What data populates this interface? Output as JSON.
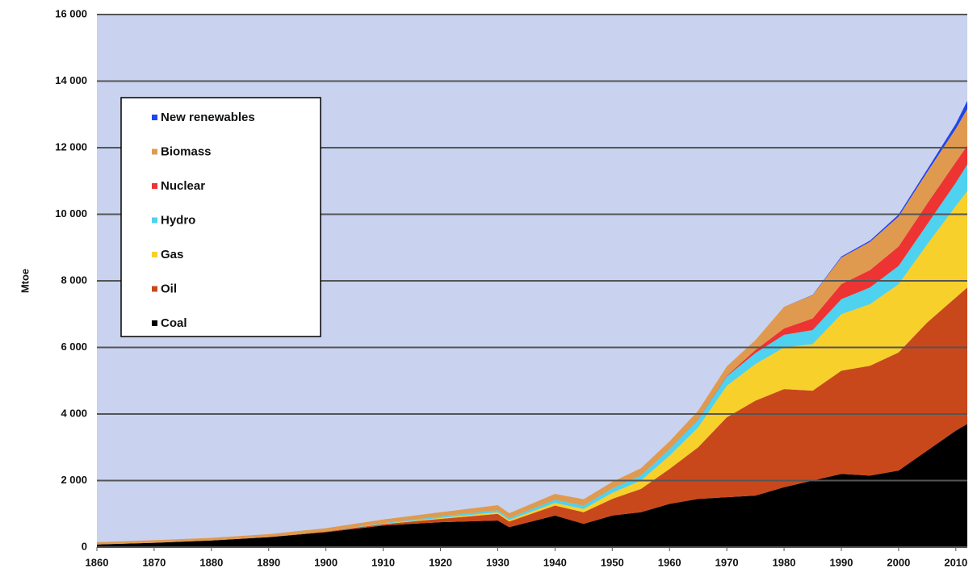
{
  "chart_data": {
    "type": "stacked-area",
    "y_label": "Mtoe",
    "x": [
      1860,
      1870,
      1880,
      1890,
      1900,
      1910,
      1920,
      1930,
      1932,
      1940,
      1945,
      1950,
      1955,
      1960,
      1965,
      1970,
      1975,
      1980,
      1985,
      1990,
      1995,
      2000,
      2005,
      2010,
      2012
    ],
    "series": [
      {
        "name": "Coal",
        "color": "#000000",
        "values": [
          80,
          130,
          200,
          300,
          450,
          650,
          750,
          800,
          600,
          950,
          700,
          950,
          1050,
          1300,
          1450,
          1500,
          1550,
          1800,
          2000,
          2200,
          2150,
          2300,
          2900,
          3500,
          3700
        ]
      },
      {
        "name": "Oil",
        "color": "#c9481b",
        "values": [
          0,
          0,
          0,
          0,
          20,
          40,
          100,
          200,
          170,
          300,
          350,
          500,
          700,
          1050,
          1550,
          2400,
          2850,
          2950,
          2700,
          3100,
          3300,
          3550,
          3850,
          4000,
          4100
        ]
      },
      {
        "name": "Gas",
        "color": "#f7d02c",
        "values": [
          0,
          0,
          0,
          0,
          0,
          10,
          30,
          50,
          45,
          80,
          100,
          180,
          250,
          400,
          600,
          950,
          1100,
          1250,
          1400,
          1700,
          1850,
          2050,
          2350,
          2750,
          2900
        ]
      },
      {
        "name": "Hydro",
        "color": "#4fd1f0",
        "values": [
          0,
          0,
          0,
          0,
          0,
          20,
          40,
          60,
          55,
          90,
          100,
          130,
          150,
          190,
          230,
          280,
          330,
          380,
          420,
          450,
          500,
          550,
          600,
          700,
          800
        ]
      },
      {
        "name": "Nuclear",
        "color": "#ee3333",
        "values": [
          0,
          0,
          0,
          0,
          0,
          0,
          0,
          0,
          0,
          0,
          0,
          0,
          0,
          0,
          10,
          20,
          90,
          190,
          350,
          450,
          520,
          580,
          620,
          620,
          560
        ]
      },
      {
        "name": "Biomass",
        "color": "#e09a50",
        "values": [
          70,
          80,
          80,
          90,
          100,
          110,
          130,
          150,
          150,
          180,
          190,
          200,
          220,
          240,
          260,
          280,
          300,
          650,
          700,
          800,
          850,
          900,
          950,
          1000,
          1100
        ]
      },
      {
        "name": "New renewables",
        "color": "#2244ee",
        "values": [
          0,
          0,
          0,
          0,
          0,
          0,
          0,
          0,
          0,
          0,
          0,
          0,
          0,
          0,
          0,
          0,
          0,
          0,
          10,
          30,
          40,
          60,
          80,
          150,
          250
        ]
      }
    ],
    "xlim": [
      1860,
      2012
    ],
    "xticks": [
      1860,
      1870,
      1880,
      1890,
      1900,
      1910,
      1920,
      1930,
      1940,
      1950,
      1960,
      1970,
      1980,
      1990,
      2000,
      2010
    ],
    "ylim": [
      0,
      16000
    ],
    "yticks": [
      0,
      {
        "value": 2000,
        "label": "2 000"
      },
      {
        "value": 4000,
        "label": "4 000"
      },
      {
        "value": 6000,
        "label": "6 000"
      },
      {
        "value": 8000,
        "label": "8 000"
      },
      {
        "value": 10000,
        "label": "10 000"
      },
      {
        "value": 12000,
        "label": "12 000"
      },
      {
        "value": 14000,
        "label": "14 000"
      },
      {
        "value": 16000,
        "label": "16 000"
      }
    ],
    "grid": true,
    "legend": "upper left"
  }
}
